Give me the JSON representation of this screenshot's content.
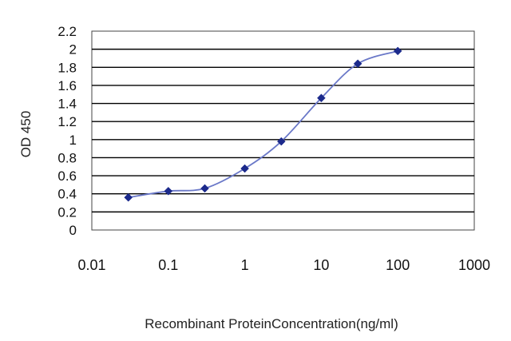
{
  "chart_data": {
    "type": "line",
    "title": "",
    "xlabel": "Recombinant ProteinConcentration(ng/ml)",
    "ylabel": "OD 450",
    "x_scale": "log",
    "xlim": [
      0.01,
      1000
    ],
    "ylim": [
      0,
      2.2
    ],
    "x_tick_labels": [
      "0.01",
      "0.1",
      "1",
      "10",
      "100",
      "1000"
    ],
    "y_tick_labels": [
      "0",
      "0.2",
      "0.4",
      "0.6",
      "0.8",
      "1",
      "1.2",
      "1.4",
      "1.6",
      "1.8",
      "2",
      "2.2"
    ],
    "grid": "horizontal",
    "legend": "none",
    "series": [
      {
        "x": [
          0.03,
          0.1,
          0.3,
          1,
          3,
          10,
          30,
          100
        ],
        "y": [
          0.36,
          0.43,
          0.46,
          0.68,
          0.98,
          1.46,
          1.84,
          1.98
        ]
      }
    ],
    "colors": {
      "line": "#6a78c8",
      "marker": "#1c2a8c",
      "grid": "#000000"
    }
  }
}
